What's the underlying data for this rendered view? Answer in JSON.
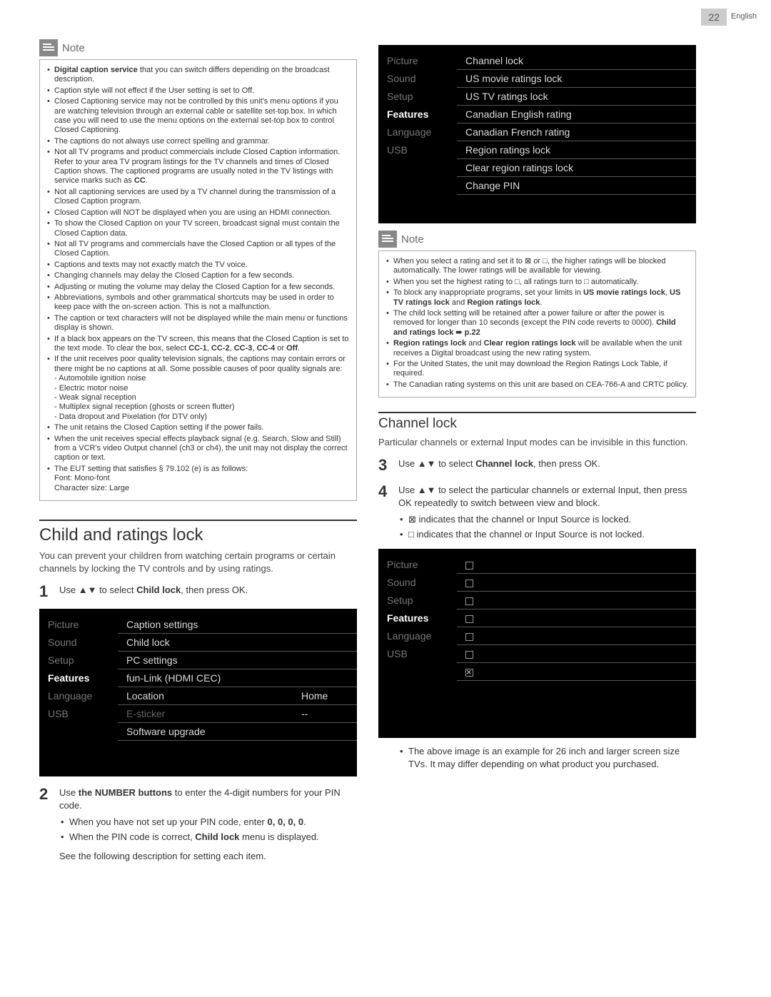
{
  "page": {
    "number": "22",
    "lang": "English"
  },
  "note1": {
    "title": "Note",
    "items": [
      "<span class='bold'>Digital caption service</span> that you can switch differs depending on the broadcast description.",
      "Caption style will not effect if the User setting is set to Off.",
      "Closed Captioning service may not be controlled by this unit's menu options if you are watching television through an external cable or satellite set-top box. In which case you will need to use the menu options on the external set-top box to control Closed Captioning.",
      "The captions do not always use correct spelling and grammar.",
      "Not all TV programs and product commercials include Closed Caption information. Refer to your area TV program listings for the TV channels and times of Closed Caption shows. The captioned programs are usually noted in the TV listings with service marks such as <span class='bold'>CC</span>.",
      "Not all captioning services are used by a TV channel during the transmission of a Closed Caption program.",
      "Closed Caption will NOT be displayed when you are using an HDMI connection.",
      "To show the Closed Caption on your TV screen, broadcast signal must contain the Closed Caption data.",
      "Not all TV programs and commercials have the Closed Caption or all types of the Closed Caption.",
      "Captions and texts may not exactly match the TV voice.",
      "Changing channels may delay the Closed Caption for a few seconds.",
      "Adjusting or muting the volume may delay the Closed Caption for a few seconds.",
      "Abbreviations, symbols and other grammatical shortcuts may be used in order to keep pace with the on-screen action. This is not a malfunction.",
      "The caption or text characters will not be displayed while the main menu or functions display is shown.",
      "If a black box appears on the TV screen, this means that the Closed Caption is set to the text mode. To clear the box, select <span class='bold'>CC-1</span>, <span class='bold'>CC-2</span>, <span class='bold'>CC-3</span>, <span class='bold'>CC-4</span> or <span class='bold'>Off</span>.",
      "If the unit receives poor quality television signals, the captions may contain errors or there might be no captions at all. Some possible causes of poor quality signals are:<span class='sub'>- Automobile ignition noise</span><span class='sub'>- Electric motor noise</span><span class='sub'>- Weak signal reception</span><span class='sub'>- Multiplex signal reception (ghosts or screen flutter)</span><span class='sub'>- Data dropout and Pixelation (for DTV only)</span>",
      "The unit retains the Closed Caption setting if the power fails.",
      "When the unit receives special effects playback signal (e.g. Search, Slow and Still) from a VCR's video Output channel (ch3 or ch4), the unit may not display the correct caption or text.",
      "The EUT setting that satisfies § 79.102 (e) is as follows:<span class='sub'>Font: Mono-font</span><span class='sub'>Character size: Large</span>"
    ]
  },
  "section1": {
    "title": "Child and ratings lock",
    "intro": "You can prevent your children from watching certain programs or certain channels by locking the TV controls and by using ratings.",
    "step1": "Use ▲▼ to select <span class='bold'>Child lock</span>, then press OK."
  },
  "menu1": {
    "side": [
      "Picture",
      "Sound",
      "Setup",
      "Features",
      "Language",
      "USB"
    ],
    "rows": [
      {
        "l": "Caption settings",
        "v": ""
      },
      {
        "l": "Child lock",
        "v": ""
      },
      {
        "l": "PC settings",
        "v": ""
      },
      {
        "l": "fun-Link (HDMI CEC)",
        "v": ""
      },
      {
        "l": "Location",
        "v": "Home"
      },
      {
        "l": "E-sticker",
        "v": "--",
        "dim": true
      },
      {
        "l": "Software upgrade",
        "v": ""
      }
    ]
  },
  "step2": {
    "text": "Use <span class='bold'>the NUMBER buttons</span> to enter the 4-digit numbers for your PIN code.",
    "bullets": [
      "When you have not set up your PIN code, enter <span class='bold'>0, 0, 0, 0</span>.",
      "When the PIN code is correct, <span class='bold'>Child lock</span> menu is displayed."
    ],
    "after": "See the following description for setting each item."
  },
  "menu2": {
    "side": [
      "Picture",
      "Sound",
      "Setup",
      "Features",
      "Language",
      "USB"
    ],
    "rows": [
      "Channel lock",
      "US movie ratings lock",
      "US TV ratings lock",
      "Canadian English rating",
      "Canadian French rating",
      "Region ratings lock",
      "Clear region ratings lock",
      "Change PIN"
    ]
  },
  "note2": {
    "title": "Note",
    "items": [
      "When you select a rating and set it to ⊠ or □, the higher ratings will be blocked automatically. The lower ratings will be available for viewing.",
      "When you set the highest rating to □, all ratings turn to □ automatically.",
      "To block any inappropriate programs, set your limits in <span class='bold'>US movie ratings lock</span>, <span class='bold'>US TV ratings lock</span> and <span class='bold'>Region ratings lock</span>.",
      "The child lock setting will be retained after a power failure or after the power is removed for longer than 10 seconds (except the PIN code reverts to 0000). <span class='bold'>Child and ratings lock ➠ p.22</span>",
      "<span class='bold'>Region ratings lock</span> and <span class='bold'>Clear region ratings lock</span> will be available when the unit receives a Digital broadcast using the new rating system.",
      "For the United States, the unit may download the Region Ratings Lock Table, if required.",
      "The Canadian rating systems on this unit are based on CEA-766-A and CRTC policy."
    ]
  },
  "section2": {
    "title": "Channel lock",
    "intro": "Particular channels or external Input modes can be invisible in this function.",
    "step3": "Use ▲▼ to select <span class='bold'>Channel lock</span>, then press OK.",
    "step4": "Use ▲▼ to select the particular channels or external Input, then press OK repeatedly to switch between view and block.",
    "step4bullets": [
      "⊠ indicates that the channel or Input Source is locked.",
      "□ indicates that the channel or Input Source is not locked."
    ]
  },
  "menu3": {
    "side": [
      "Picture",
      "Sound",
      "Setup",
      "Features",
      "Language",
      "USB"
    ],
    "checks": [
      false,
      false,
      false,
      false,
      false,
      false,
      true
    ]
  },
  "footnote": [
    "The above image is an example for 26 inch and larger screen size TVs.  It may differ depending on what product you purchased."
  ]
}
